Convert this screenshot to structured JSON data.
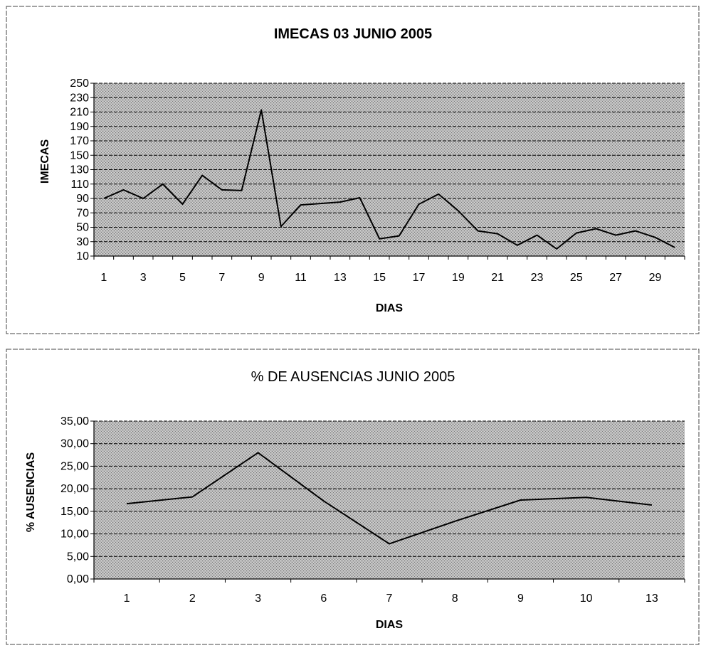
{
  "chart_data": [
    {
      "type": "line",
      "title": "IMECAS 03 JUNIO 2005",
      "xlabel": "DIAS",
      "ylabel": "IMECAS",
      "ylim": [
        10,
        250
      ],
      "yticks": [
        "250",
        "230",
        "210",
        "190",
        "170",
        "150",
        "130",
        "110",
        "90",
        "70",
        "50",
        "30",
        "10"
      ],
      "xtick_labels": [
        "1",
        "3",
        "5",
        "7",
        "9",
        "11",
        "13",
        "15",
        "17",
        "19",
        "21",
        "23",
        "25",
        "27",
        "29"
      ],
      "grid": true,
      "x": [
        1,
        2,
        3,
        4,
        5,
        6,
        7,
        8,
        9,
        10,
        11,
        12,
        13,
        14,
        15,
        16,
        17,
        18,
        19,
        20,
        21,
        22,
        23,
        24,
        25,
        26,
        27,
        28,
        29,
        30
      ],
      "values": [
        90,
        102,
        90,
        110,
        82,
        122,
        102,
        101,
        213,
        51,
        81,
        83,
        85,
        91,
        34,
        38,
        82,
        96,
        73,
        45,
        41,
        25,
        39,
        20,
        42,
        48,
        39,
        45,
        36,
        22
      ],
      "background_color": "#a9a9a9",
      "line_color": "#000000"
    },
    {
      "type": "line",
      "title": "% DE AUSENCIAS JUNIO 2005",
      "xlabel": "DIAS",
      "ylabel": "% AUSENCIAS",
      "ylim": [
        0,
        35
      ],
      "yticks": [
        "35,00",
        "30,00",
        "25,00",
        "20,00",
        "15,00",
        "10,00",
        "5,00",
        "0,00"
      ],
      "categories": [
        "1",
        "2",
        "3",
        "6",
        "7",
        "8",
        "9",
        "10",
        "13"
      ],
      "values": [
        16.7,
        18.2,
        28.0,
        17.3,
        7.8,
        12.8,
        17.5,
        18.1,
        16.4
      ],
      "grid": true,
      "background_color": "#a9a9a9",
      "line_color": "#000000"
    }
  ]
}
